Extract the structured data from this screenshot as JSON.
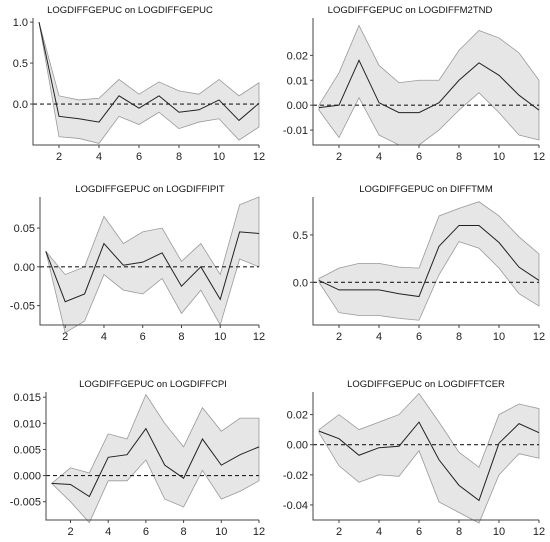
{
  "chart_data": [
    {
      "type": "line",
      "title": "LOGDIFFGEPUC on LOGDIFFGEPUC",
      "x": [
        1,
        2,
        3,
        4,
        5,
        6,
        7,
        8,
        9,
        10,
        11,
        12
      ],
      "xlim": [
        0.7,
        12
      ],
      "xticks": [
        2,
        4,
        6,
        8,
        10,
        12
      ],
      "ylim": [
        -0.5,
        1.05
      ],
      "yticks": [
        0.0,
        0.5,
        1.0
      ],
      "ytick_labels": [
        "0.0",
        "0.5",
        "1.0"
      ],
      "zero_line": true,
      "series": [
        {
          "role": "response",
          "values": [
            1.0,
            -0.15,
            -0.18,
            -0.22,
            0.1,
            -0.05,
            0.1,
            -0.1,
            -0.07,
            0.05,
            -0.2,
            0.01
          ]
        },
        {
          "role": "upper",
          "values": [
            1.0,
            0.1,
            0.05,
            0.07,
            0.3,
            0.12,
            0.27,
            0.16,
            0.12,
            0.3,
            0.1,
            0.26
          ]
        },
        {
          "role": "lower",
          "values": [
            1.0,
            -0.4,
            -0.42,
            -0.48,
            -0.15,
            -0.25,
            -0.1,
            -0.3,
            -0.22,
            -0.18,
            -0.44,
            -0.28
          ]
        }
      ]
    },
    {
      "type": "line",
      "title": "LOGDIFFGEPUC on LOGDIFFM2TND",
      "x": [
        1,
        2,
        3,
        4,
        5,
        6,
        7,
        8,
        9,
        10,
        11,
        12
      ],
      "xlim": [
        0.7,
        12
      ],
      "xticks": [
        2,
        4,
        6,
        8,
        10,
        12
      ],
      "ylim": [
        -0.016,
        0.035
      ],
      "yticks": [
        -0.01,
        0.0,
        0.01,
        0.02
      ],
      "ytick_labels": [
        "-0.01",
        "0.00",
        "0.01",
        "0.02"
      ],
      "zero_line": true,
      "series": [
        {
          "role": "response",
          "values": [
            -0.001,
            0.0,
            0.018,
            0.001,
            -0.003,
            -0.003,
            0.001,
            0.01,
            0.017,
            0.012,
            0.004,
            -0.002
          ]
        },
        {
          "role": "upper",
          "values": [
            0.0,
            0.013,
            0.032,
            0.016,
            0.009,
            0.01,
            0.01,
            0.022,
            0.03,
            0.027,
            0.021,
            0.01
          ]
        },
        {
          "role": "lower",
          "values": [
            -0.002,
            -0.013,
            0.003,
            -0.012,
            -0.016,
            -0.016,
            -0.01,
            -0.002,
            0.005,
            -0.003,
            -0.012,
            -0.014
          ]
        }
      ]
    },
    {
      "type": "line",
      "title": "LOGDIFFGEPUC on LOGDIFFIPIT",
      "x": [
        1,
        2,
        3,
        4,
        5,
        6,
        7,
        8,
        9,
        10,
        11,
        12
      ],
      "xlim": [
        0.7,
        12
      ],
      "xticks": [
        2,
        4,
        6,
        8,
        10,
        12
      ],
      "ylim": [
        -0.075,
        0.09
      ],
      "yticks": [
        -0.05,
        0.0,
        0.05
      ],
      "ytick_labels": [
        "-0.05",
        "0.00",
        "0.05"
      ],
      "zero_line": true,
      "series": [
        {
          "role": "response",
          "values": [
            0.02,
            -0.045,
            -0.035,
            0.03,
            0.002,
            0.006,
            0.018,
            -0.025,
            0.0,
            -0.042,
            0.045,
            0.043
          ]
        },
        {
          "role": "upper",
          "values": [
            0.02,
            -0.01,
            0.0,
            0.065,
            0.03,
            0.045,
            0.05,
            0.007,
            0.03,
            -0.01,
            0.08,
            0.09
          ]
        },
        {
          "role": "lower",
          "values": [
            0.02,
            -0.085,
            -0.07,
            -0.01,
            -0.03,
            -0.035,
            -0.015,
            -0.06,
            -0.03,
            -0.075,
            0.01,
            0.0
          ]
        }
      ]
    },
    {
      "type": "line",
      "title": "LOGDIFFGEPUC on DIFFTMM",
      "x": [
        1,
        2,
        3,
        4,
        5,
        6,
        7,
        8,
        9,
        10,
        11,
        12
      ],
      "xlim": [
        0.7,
        12
      ],
      "xticks": [
        2,
        4,
        6,
        8,
        10,
        12
      ],
      "ylim": [
        -0.45,
        0.9
      ],
      "yticks": [
        0.0,
        0.5
      ],
      "ytick_labels": [
        "0.0",
        "0.5"
      ],
      "zero_line": true,
      "series": [
        {
          "role": "response",
          "values": [
            0.02,
            -0.08,
            -0.08,
            -0.08,
            -0.12,
            -0.15,
            0.38,
            0.6,
            0.6,
            0.42,
            0.16,
            0.02
          ]
        },
        {
          "role": "upper",
          "values": [
            0.04,
            0.15,
            0.2,
            0.2,
            0.16,
            0.15,
            0.7,
            0.78,
            0.85,
            0.7,
            0.48,
            0.3
          ]
        },
        {
          "role": "lower",
          "values": [
            0.0,
            -0.32,
            -0.35,
            -0.35,
            -0.38,
            -0.4,
            0.08,
            0.43,
            0.36,
            0.15,
            -0.12,
            -0.25
          ]
        }
      ]
    },
    {
      "type": "line",
      "title": "LOGDIFFGEPUC on LOGDIFFCPI",
      "x": [
        1,
        2,
        3,
        4,
        5,
        6,
        7,
        8,
        9,
        10,
        11,
        12
      ],
      "xlim": [
        0.7,
        12
      ],
      "xticks": [
        2,
        4,
        6,
        8,
        10,
        12
      ],
      "ylim": [
        -0.0085,
        0.016
      ],
      "yticks": [
        -0.005,
        0.0,
        0.005,
        0.01,
        0.015
      ],
      "ytick_labels": [
        "-0.005",
        "0.000",
        "0.005",
        "0.010",
        "0.015"
      ],
      "zero_line": true,
      "series": [
        {
          "role": "response",
          "values": [
            -0.0015,
            -0.0017,
            -0.004,
            0.0035,
            0.004,
            0.009,
            0.002,
            -0.0005,
            0.007,
            0.002,
            0.004,
            0.0055
          ]
        },
        {
          "role": "upper",
          "values": [
            -0.0015,
            0.0015,
            0.0005,
            0.008,
            0.007,
            0.0155,
            0.01,
            0.0055,
            0.013,
            0.0085,
            0.011,
            0.011
          ]
        },
        {
          "role": "lower",
          "values": [
            -0.0015,
            -0.005,
            -0.009,
            -0.001,
            -0.001,
            0.003,
            -0.0045,
            -0.006,
            0.001,
            -0.0045,
            -0.003,
            -0.001
          ]
        }
      ]
    },
    {
      "type": "line",
      "title": "LOGDIFFGEPUC on LOGDIFFTCER",
      "x": [
        1,
        2,
        3,
        4,
        5,
        6,
        7,
        8,
        9,
        10,
        11,
        12
      ],
      "xlim": [
        0.7,
        12
      ],
      "xticks": [
        2,
        4,
        6,
        8,
        10,
        12
      ],
      "ylim": [
        -0.05,
        0.035
      ],
      "yticks": [
        -0.04,
        -0.02,
        0.0,
        0.02
      ],
      "ytick_labels": [
        "-0.04",
        "-0.02",
        "0.00",
        "0.02"
      ],
      "zero_line": true,
      "series": [
        {
          "role": "response",
          "values": [
            0.009,
            0.004,
            -0.007,
            -0.002,
            -0.001,
            0.015,
            -0.01,
            -0.027,
            -0.037,
            0.001,
            0.014,
            0.008
          ]
        },
        {
          "role": "upper",
          "values": [
            0.01,
            0.02,
            0.01,
            0.015,
            0.02,
            0.034,
            0.015,
            -0.005,
            -0.015,
            0.02,
            0.027,
            0.024
          ]
        },
        {
          "role": "lower",
          "values": [
            0.008,
            -0.014,
            -0.025,
            -0.02,
            -0.021,
            -0.004,
            -0.038,
            -0.045,
            -0.052,
            -0.02,
            -0.006,
            -0.009
          ]
        }
      ]
    }
  ]
}
